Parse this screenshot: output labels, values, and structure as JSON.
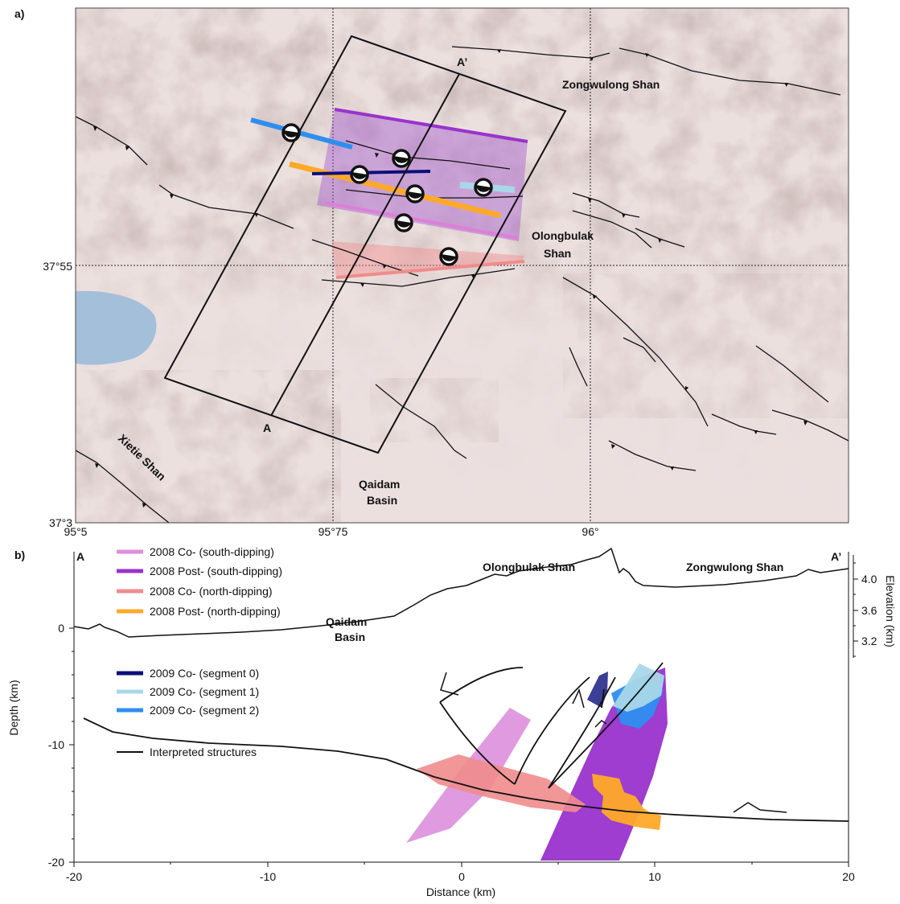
{
  "panel_a": {
    "label": "a)",
    "place_labels": {
      "zongwulong": "Zongwulong Shan",
      "olongbulak_1": "Olongbulak",
      "olongbulak_2": "Shan",
      "qaidam_1": "Qaidam",
      "qaidam_2": "Basin",
      "xietie": "Xietie Shan",
      "a_point": "A",
      "a_prime_point": "A’"
    },
    "lat_labels": {
      "lat_1": "37°55",
      "lat_2": "37°3"
    },
    "lon_labels": {
      "lon_1": "95°5",
      "lon_2": "95°75",
      "lon_3": "96°"
    }
  },
  "panel_b": {
    "label": "b)",
    "end_a": "A",
    "end_a_prime": "A’",
    "place_labels": {
      "olongbulak": "Olongbulak Shan",
      "zongwulong": "Zongwulong Shan",
      "qaidam_1": "Qaidam",
      "qaidam_2": "Basin"
    },
    "x_axis": {
      "title": "Distance (km)",
      "ticks": [
        "-20",
        "-10",
        "0",
        "10",
        "20"
      ]
    },
    "y_axis_left": {
      "title": "Depth (km)",
      "ticks": [
        "0",
        "-10",
        "-20"
      ]
    },
    "y_axis_right": {
      "title": "Elevation (km)",
      "ticks": [
        "4.0",
        "3.6",
        "3.2"
      ]
    },
    "legend": [
      {
        "label": "2008 Co- (south-dipping)",
        "color": "#dd8fdc"
      },
      {
        "label": "2008 Post- (south-dipping)",
        "color": "#9933cc"
      },
      {
        "label": "2008 Co- (north-dipping)",
        "color": "#f08c8c"
      },
      {
        "label": "2008 Post- (north-dipping)",
        "color": "#ffa928"
      },
      {
        "label": "2009 Co- (segment 0)",
        "color": "#0a0f7a"
      },
      {
        "label": "2009 Co- (segment 1)",
        "color": "#a8d8e8"
      },
      {
        "label": "2009 Co- (segment 2)",
        "color": "#2e8ef0"
      },
      {
        "label": "Interpreted structures",
        "color": "#000000"
      }
    ]
  }
}
